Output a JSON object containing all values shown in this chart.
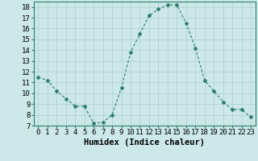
{
  "x": [
    0,
    1,
    2,
    3,
    4,
    5,
    6,
    7,
    8,
    9,
    10,
    11,
    12,
    13,
    14,
    15,
    16,
    17,
    18,
    19,
    20,
    21,
    22,
    23
  ],
  "y": [
    11.5,
    11.2,
    10.2,
    9.5,
    8.8,
    8.8,
    7.2,
    7.3,
    8.0,
    10.5,
    13.8,
    15.5,
    17.2,
    17.8,
    18.2,
    18.2,
    16.5,
    14.2,
    11.2,
    10.2,
    9.2,
    8.5,
    8.5,
    7.8
  ],
  "line_color": "#2e7d6e",
  "marker": "D",
  "marker_size": 2.0,
  "bg_color": "#cce8e8",
  "grid_color": "#aad0d0",
  "xlabel": "Humidex (Indice chaleur)",
  "ylabel": "",
  "xlim": [
    -0.5,
    23.5
  ],
  "ylim": [
    7,
    18.5
  ],
  "yticks": [
    7,
    8,
    9,
    10,
    11,
    12,
    13,
    14,
    15,
    16,
    17,
    18
  ],
  "xticks": [
    0,
    1,
    2,
    3,
    4,
    5,
    6,
    7,
    8,
    9,
    10,
    11,
    12,
    13,
    14,
    15,
    16,
    17,
    18,
    19,
    20,
    21,
    22,
    23
  ],
  "xlabel_fontsize": 7.5,
  "tick_fontsize": 6.5
}
